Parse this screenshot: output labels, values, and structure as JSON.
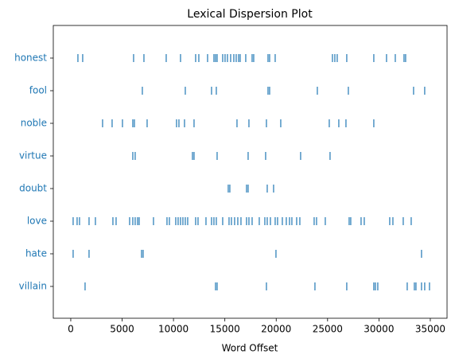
{
  "chart_data": {
    "type": "dispersion",
    "title": "Lexical Dispersion Plot",
    "xlabel": "Word Offset",
    "color": "#1f77b4",
    "xlim": [
      -1700,
      36630
    ],
    "xticks": [
      0,
      5000,
      10000,
      15000,
      20000,
      25000,
      30000,
      35000
    ],
    "series": [
      {
        "name": "honest",
        "values": [
          697,
          1161,
          6117,
          7124,
          9292,
          10686,
          12157,
          12467,
          13319,
          13938,
          14093,
          14248,
          14790,
          15022,
          15254,
          15564,
          15874,
          16106,
          16338,
          16493,
          17035,
          17655,
          17810,
          19203,
          19358,
          19900,
          25475,
          25707,
          25939,
          26868,
          29501,
          30740,
          31592,
          32443,
          32598
        ]
      },
      {
        "name": "fool",
        "values": [
          6969,
          11150,
          13705,
          14170,
          19203,
          19358,
          24004,
          27023,
          33372,
          34456
        ]
      },
      {
        "name": "noble",
        "values": [
          3097,
          4026,
          5033,
          6040,
          6195,
          7434,
          10298,
          10531,
          11073,
          12002,
          16183,
          17345,
          19048,
          20442,
          25165,
          26094,
          26791,
          29501
        ]
      },
      {
        "name": "virtue",
        "values": [
          6040,
          6272,
          11847,
          12002,
          14248,
          17267,
          18971,
          22377,
          25242
        ]
      },
      {
        "name": "doubt",
        "values": [
          15332,
          15486,
          17112,
          17267,
          19126,
          19745
        ]
      },
      {
        "name": "love",
        "values": [
          232,
          619,
          852,
          1781,
          2400,
          4104,
          4414,
          5730,
          6040,
          6272,
          6504,
          6659,
          8053,
          9369,
          9602,
          10221,
          10453,
          10686,
          10918,
          11150,
          11383,
          12157,
          12390,
          13164,
          13705,
          13938,
          14170,
          14790,
          15409,
          15641,
          15951,
          16261,
          16570,
          17112,
          17345,
          17655,
          18351,
          18893,
          19126,
          19436,
          19900,
          20132,
          20597,
          20984,
          21296,
          21525,
          21990,
          22300,
          23694,
          23926,
          24778,
          27101,
          27256,
          28262,
          28572,
          31050,
          31360,
          32366,
          33140
        ]
      },
      {
        "name": "hate",
        "values": [
          232,
          1781,
          6891,
          7046,
          19977,
          34146
        ]
      },
      {
        "name": "villain",
        "values": [
          1394,
          14093,
          14248,
          19048,
          23771,
          26868,
          29501,
          29656,
          29888,
          32753,
          33450,
          33605,
          34146,
          34456,
          34921
        ]
      }
    ]
  }
}
